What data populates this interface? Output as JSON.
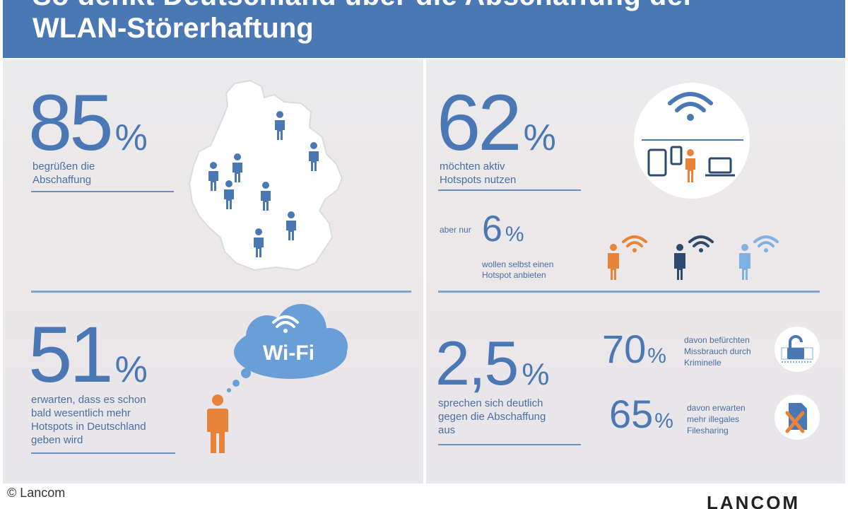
{
  "header": {
    "title_line1": "So denkt Deutschland über die Abschaffung der",
    "title_line2": "WLAN-Störerhaftung"
  },
  "stats": {
    "s85": {
      "value": "85",
      "unit": "%",
      "line1": "begrüßen die",
      "line2": "Abschaffung"
    },
    "s62": {
      "value": "62",
      "unit": "%",
      "line1": "möchten aktiv",
      "line2": "Hotspots nutzen"
    },
    "s6": {
      "prefix": "aber nur",
      "value": "6",
      "unit": "%",
      "line1": "wollen selbst einen",
      "line2": "Hotspot anbieten"
    },
    "s51": {
      "value": "51",
      "unit": "%",
      "line1": "erwarten, dass es schon",
      "line2": "bald wesentlich mehr",
      "line3": "Hotspots in Deutschland",
      "line4": "geben wird"
    },
    "s25": {
      "value": "2,5",
      "unit": "%",
      "line1": "sprechen sich deutlich",
      "line2": "gegen die Abschaffung",
      "line3": "aus"
    },
    "s70": {
      "value": "70",
      "unit": "%",
      "line1": "davon befürchten",
      "line2": "Missbrauch durch",
      "line3": "Kriminelle"
    },
    "s65": {
      "value": "65",
      "unit": "%",
      "line1": "davon erwarten",
      "line2": "mehr illegales",
      "line3": "Filesharing"
    }
  },
  "cloud": {
    "label": "Wi-Fi"
  },
  "footer": {
    "copyright": "© Lancom",
    "brand": "LANCOM"
  },
  "icons": {
    "germany_map": "germany-map-icon",
    "person": "person-icon",
    "wifi": "wifi-icon",
    "devices": "devices-icon",
    "lock": "lock-icon",
    "file_crossed": "file-crossed-icon"
  },
  "colors": {
    "blue": "#4a78b5",
    "orange": "#e8833a",
    "dark_blue": "#2d4a6e",
    "light_blue": "#7fb2e3"
  }
}
